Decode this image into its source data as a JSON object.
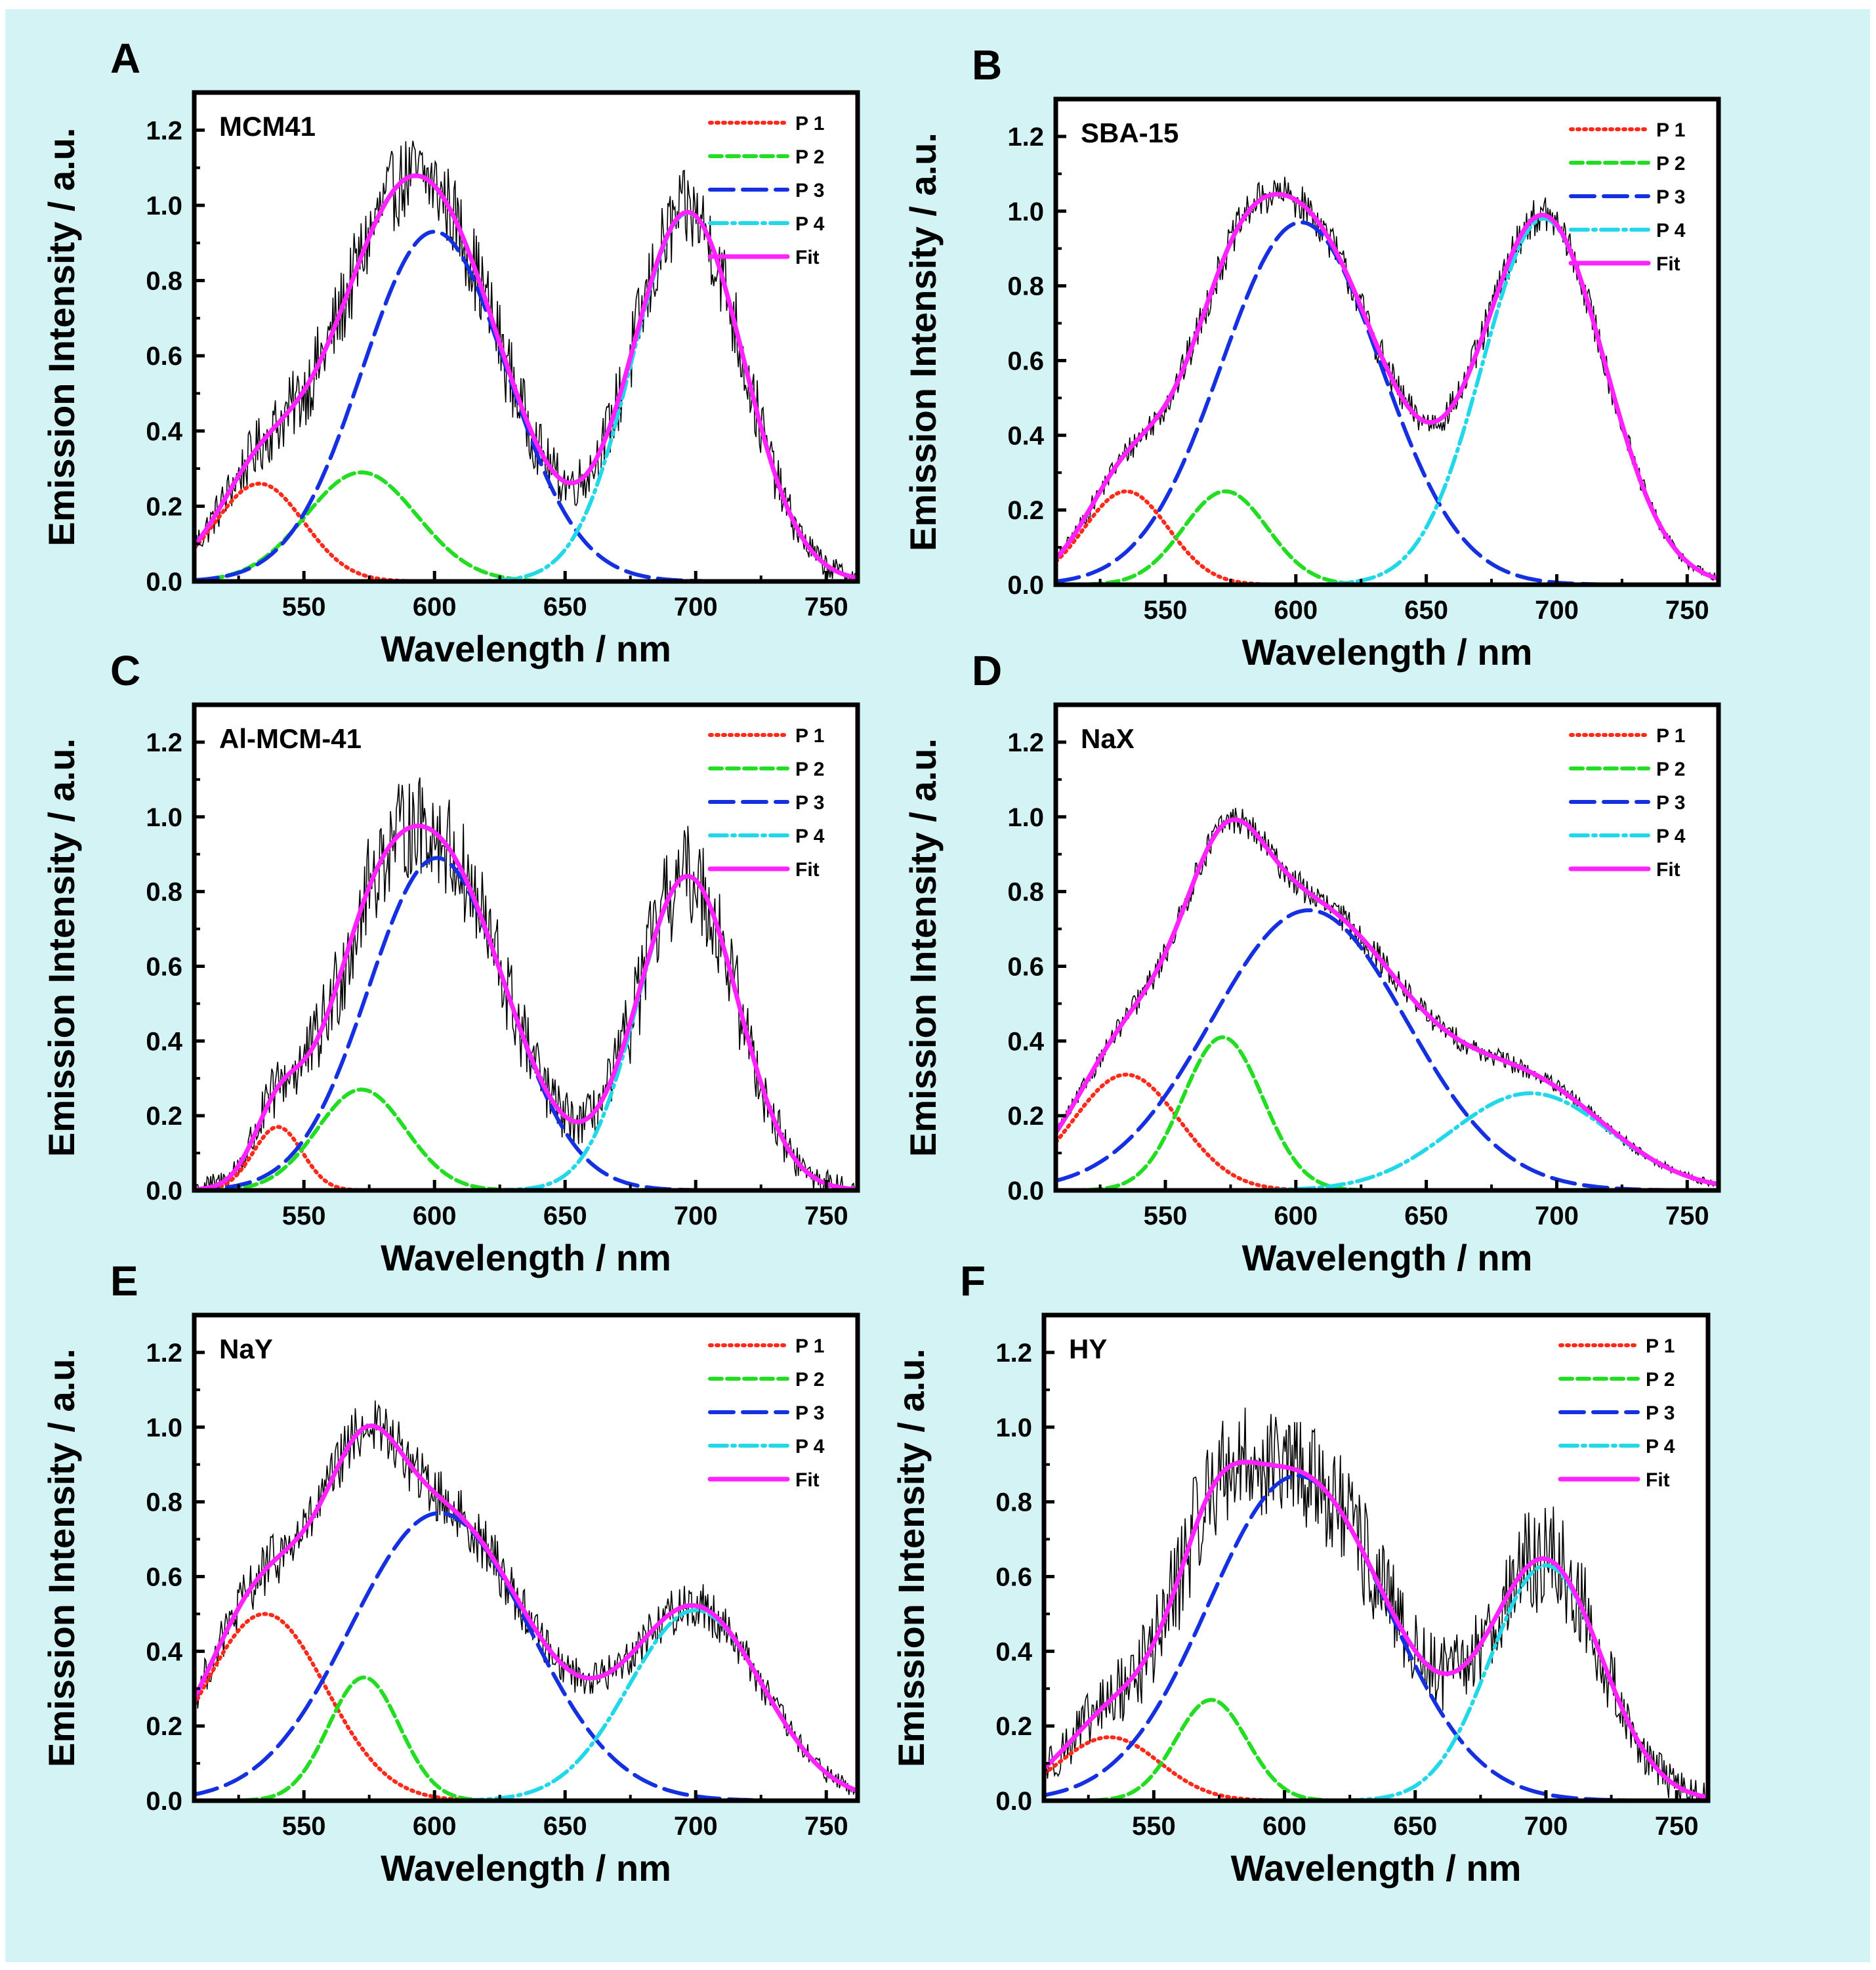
{
  "figure": {
    "background": "#d4f3f4",
    "series_styles": [
      {
        "key": "P1",
        "color": "#ff2a1a",
        "dash": "dots"
      },
      {
        "key": "P2",
        "color": "#22dd22",
        "dash": "short-dash"
      },
      {
        "key": "P3",
        "color": "#1530e0",
        "dash": "long-dash"
      },
      {
        "key": "P4",
        "color": "#22d8e8",
        "dash": "dash-dot"
      },
      {
        "key": "Fit",
        "color": "#ff22ff",
        "dash": "solid"
      },
      {
        "key": "Data",
        "color": "#000000",
        "dash": "solid"
      }
    ]
  },
  "chart_data": [
    {
      "panel": "A",
      "sample": "MCM41",
      "type": "line",
      "xlabel": "Wavelength / nm",
      "ylabel": "Emission Intensity / a.u.",
      "xlim": [
        508,
        762
      ],
      "ylim": [
        0.0,
        1.3
      ],
      "xticks": [
        550,
        600,
        650,
        700,
        750
      ],
      "yticks": [
        0.0,
        0.2,
        0.4,
        0.6,
        0.8,
        1.0,
        1.2
      ],
      "legend": [
        "P 1",
        "P 2",
        "P 3",
        "P 4",
        "Fit"
      ],
      "legend_position": "top-right",
      "series": [
        {
          "name": "P 1",
          "peak_nm": 533,
          "height": 0.26,
          "fwhm_nm": 40
        },
        {
          "name": "P 2",
          "peak_nm": 572,
          "height": 0.29,
          "fwhm_nm": 50
        },
        {
          "name": "P 3",
          "peak_nm": 600,
          "height": 0.93,
          "fwhm_nm": 65
        },
        {
          "name": "P 4",
          "peak_nm": 697,
          "height": 0.98,
          "fwhm_nm": 50
        }
      ],
      "noise": 0.09
    },
    {
      "panel": "B",
      "sample": "SBA-15",
      "type": "line",
      "xlabel": "Wavelength / nm",
      "ylabel": "Emission Intensity / a.u.",
      "xlim": [
        508,
        762
      ],
      "ylim": [
        0.0,
        1.3
      ],
      "xticks": [
        550,
        600,
        650,
        700,
        750
      ],
      "yticks": [
        0.0,
        0.2,
        0.4,
        0.6,
        0.8,
        1.0,
        1.2
      ],
      "legend": [
        "P 1",
        "P 2",
        "P 3",
        "P 4",
        "Fit"
      ],
      "legend_position": "top-right",
      "series": [
        {
          "name": "P 1",
          "peak_nm": 535,
          "height": 0.25,
          "fwhm_nm": 38
        },
        {
          "name": "P 2",
          "peak_nm": 573,
          "height": 0.25,
          "fwhm_nm": 38
        },
        {
          "name": "P 3",
          "peak_nm": 602,
          "height": 0.97,
          "fwhm_nm": 72
        },
        {
          "name": "P 4",
          "peak_nm": 695,
          "height": 0.98,
          "fwhm_nm": 55
        }
      ],
      "noise": 0.04
    },
    {
      "panel": "C",
      "sample": "Al-MCM-41",
      "type": "line",
      "xlabel": "Wavelength / nm",
      "ylabel": "Emission Intensity / a.u.",
      "xlim": [
        508,
        762
      ],
      "ylim": [
        0.0,
        1.3
      ],
      "xticks": [
        550,
        600,
        650,
        700,
        750
      ],
      "yticks": [
        0.0,
        0.2,
        0.4,
        0.6,
        0.8,
        1.0,
        1.2
      ],
      "legend": [
        "P 1",
        "P 2",
        "P 3",
        "P 4",
        "Fit"
      ],
      "legend_position": "top-right",
      "series": [
        {
          "name": "P 1",
          "peak_nm": 540,
          "height": 0.17,
          "fwhm_nm": 22
        },
        {
          "name": "P 2",
          "peak_nm": 572,
          "height": 0.27,
          "fwhm_nm": 40
        },
        {
          "name": "P 3",
          "peak_nm": 601,
          "height": 0.89,
          "fwhm_nm": 62
        },
        {
          "name": "P 4",
          "peak_nm": 697,
          "height": 0.84,
          "fwhm_nm": 45
        }
      ],
      "noise": 0.11
    },
    {
      "panel": "D",
      "sample": "NaX",
      "type": "line",
      "xlabel": "Wavelength / nm",
      "ylabel": "Emission Intensity / a.u.",
      "xlim": [
        508,
        762
      ],
      "ylim": [
        0.0,
        1.3
      ],
      "xticks": [
        550,
        600,
        650,
        700,
        750
      ],
      "yticks": [
        0.0,
        0.2,
        0.4,
        0.6,
        0.8,
        1.0,
        1.2
      ],
      "legend": [
        "P 1",
        "P 2",
        "P 3",
        "P 4",
        "Fit"
      ],
      "legend_position": "top-right",
      "series": [
        {
          "name": "P 1",
          "peak_nm": 535,
          "height": 0.31,
          "fwhm_nm": 48
        },
        {
          "name": "P 2",
          "peak_nm": 572,
          "height": 0.41,
          "fwhm_nm": 36
        },
        {
          "name": "P 3",
          "peak_nm": 605,
          "height": 0.75,
          "fwhm_nm": 88
        },
        {
          "name": "P 4",
          "peak_nm": 690,
          "height": 0.26,
          "fwhm_nm": 72
        }
      ],
      "noise": 0.03
    },
    {
      "panel": "E",
      "sample": "NaY",
      "type": "line",
      "xlabel": "Wavelength / nm",
      "ylabel": "Emission Intensity / a.u.",
      "xlim": [
        508,
        762
      ],
      "ylim": [
        0.0,
        1.3
      ],
      "xticks": [
        550,
        600,
        650,
        700,
        750
      ],
      "yticks": [
        0.0,
        0.2,
        0.4,
        0.6,
        0.8,
        1.0,
        1.2
      ],
      "legend": [
        "P 1",
        "P 2",
        "P 3",
        "P 4",
        "Fit"
      ],
      "legend_position": "top-right",
      "series": [
        {
          "name": "P 1",
          "peak_nm": 535,
          "height": 0.5,
          "fwhm_nm": 55
        },
        {
          "name": "P 2",
          "peak_nm": 573,
          "height": 0.33,
          "fwhm_nm": 32
        },
        {
          "name": "P 3",
          "peak_nm": 602,
          "height": 0.77,
          "fwhm_nm": 80
        },
        {
          "name": "P 4",
          "peak_nm": 700,
          "height": 0.51,
          "fwhm_nm": 60
        }
      ],
      "noise": 0.06
    },
    {
      "panel": "F",
      "sample": "HY",
      "type": "line",
      "xlabel": "Wavelength / nm",
      "ylabel": "Emission Intensity / a.u.",
      "xlim": [
        508,
        762
      ],
      "ylim": [
        0.0,
        1.3
      ],
      "xticks": [
        550,
        600,
        650,
        700,
        750
      ],
      "yticks": [
        0.0,
        0.2,
        0.4,
        0.6,
        0.8,
        1.0,
        1.2
      ],
      "legend": [
        "P 1",
        "P 2",
        "P 3",
        "P 4",
        "Fit"
      ],
      "legend_position": "top-right",
      "series": [
        {
          "name": "P 1",
          "peak_nm": 533,
          "height": 0.17,
          "fwhm_nm": 45
        },
        {
          "name": "P 2",
          "peak_nm": 572,
          "height": 0.27,
          "fwhm_nm": 32
        },
        {
          "name": "P 3",
          "peak_nm": 605,
          "height": 0.87,
          "fwhm_nm": 80
        },
        {
          "name": "P 4",
          "peak_nm": 700,
          "height": 0.63,
          "fwhm_nm": 50
        }
      ],
      "noise": 0.12
    }
  ]
}
